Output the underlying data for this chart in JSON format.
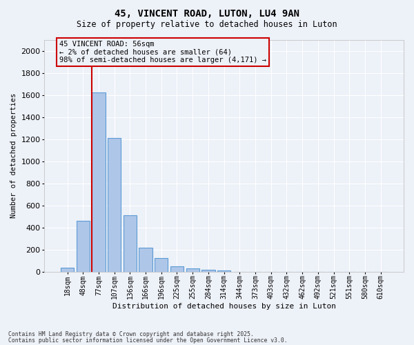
{
  "title_line1": "45, VINCENT ROAD, LUTON, LU4 9AN",
  "title_line2": "Size of property relative to detached houses in Luton",
  "xlabel": "Distribution of detached houses by size in Luton",
  "ylabel": "Number of detached properties",
  "categories": [
    "18sqm",
    "48sqm",
    "77sqm",
    "107sqm",
    "136sqm",
    "166sqm",
    "196sqm",
    "225sqm",
    "255sqm",
    "284sqm",
    "314sqm",
    "344sqm",
    "373sqm",
    "403sqm",
    "432sqm",
    "462sqm",
    "492sqm",
    "521sqm",
    "551sqm",
    "580sqm",
    "610sqm"
  ],
  "values": [
    35,
    460,
    1620,
    1210,
    510,
    220,
    125,
    50,
    30,
    20,
    15,
    0,
    0,
    0,
    0,
    0,
    0,
    0,
    0,
    0,
    0
  ],
  "bar_color": "#aec6e8",
  "bar_edge_color": "#5b9bd5",
  "vline_x": 1.57,
  "vline_color": "#cc0000",
  "annotation_box_text": "45 VINCENT ROAD: 56sqm\n← 2% of detached houses are smaller (64)\n98% of semi-detached houses are larger (4,171) →",
  "box_edge_color": "#cc0000",
  "background_color": "#edf1f8",
  "grid_color": "#ffffff",
  "ylim": [
    0,
    2100
  ],
  "yticks": [
    0,
    200,
    400,
    600,
    800,
    1000,
    1200,
    1400,
    1600,
    1800,
    2000
  ],
  "footnote1": "Contains HM Land Registry data © Crown copyright and database right 2025.",
  "footnote2": "Contains public sector information licensed under the Open Government Licence v3.0."
}
